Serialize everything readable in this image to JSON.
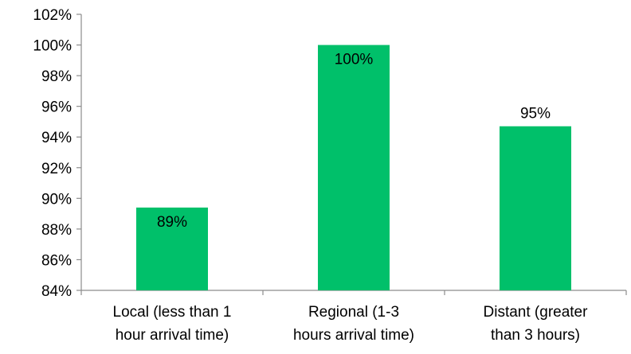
{
  "chart_data": {
    "type": "bar",
    "categories": [
      [
        "Local (less than 1",
        "hour arrival time)"
      ],
      [
        "Regional (1-3",
        "hours arrival time)"
      ],
      [
        "Distant (greater",
        "than 3 hours)"
      ]
    ],
    "values": [
      89.4,
      100,
      94.7
    ],
    "data_labels": [
      "89%",
      "100%",
      "95%"
    ],
    "y_ticks": [
      "84%",
      "86%",
      "88%",
      "90%",
      "92%",
      "94%",
      "96%",
      "98%",
      "100%",
      "102%"
    ],
    "ylim": [
      84,
      102
    ],
    "y_step": 2,
    "bar_color": "#00C06A",
    "axis_color": "#8C8C8C",
    "text_color": "#000000",
    "grid": false,
    "legend": "none"
  }
}
